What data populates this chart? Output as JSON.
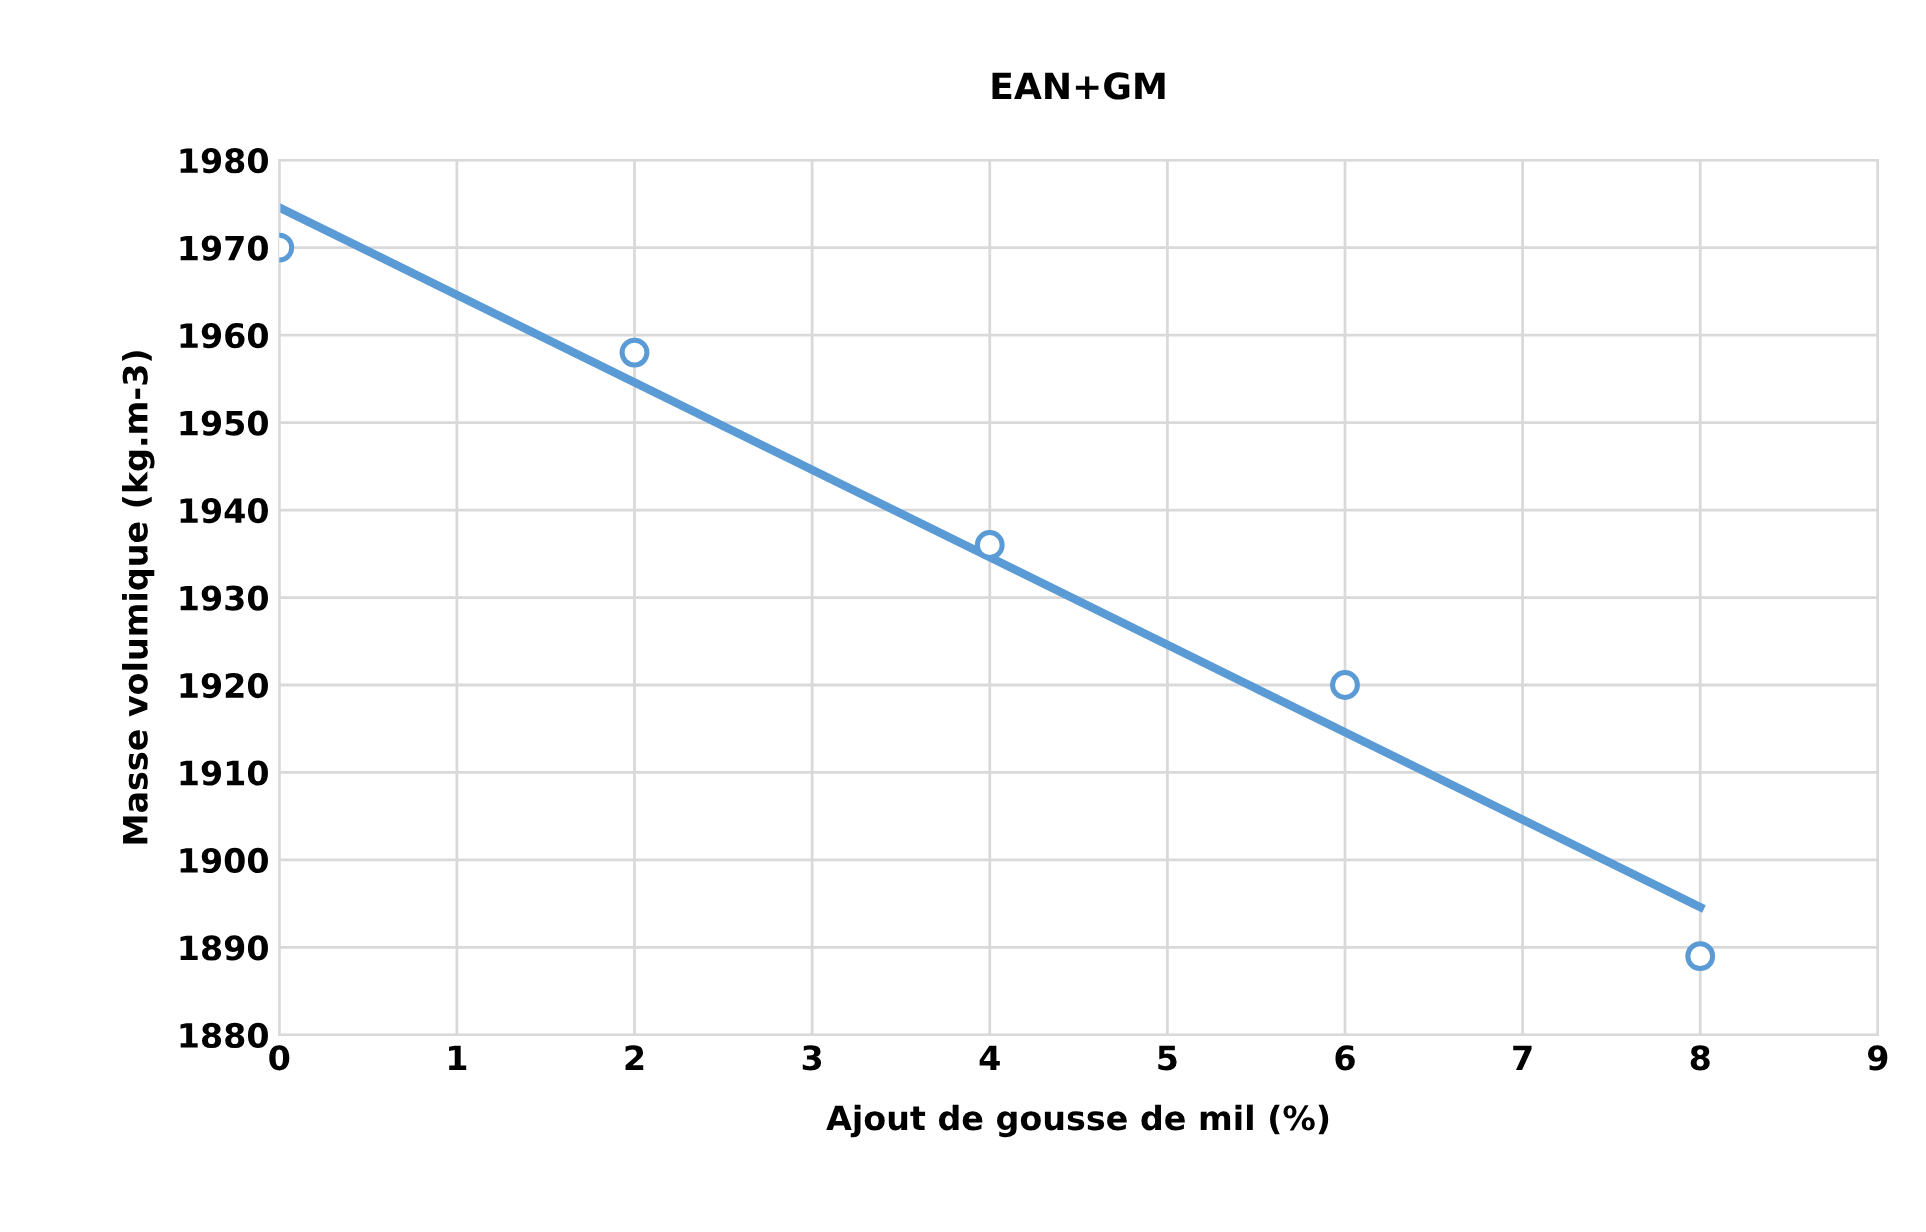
{
  "chart_data": {
    "type": "scatter",
    "title": "EAN+GM",
    "xlabel": "Ajout de gousse de mil (%)",
    "ylabel": "Masse volumique (kg.m-3)",
    "series": [
      {
        "color": "#5b9bd5",
        "x": [
          0,
          2,
          4,
          6,
          8
        ],
        "values": [
          1970,
          1958,
          1936,
          1920,
          1889
        ],
        "marker": "circle"
      },
      {
        "type": "line",
        "color": "#5b9bd5",
        "x": [
          0,
          8
        ],
        "values": [
          1974.6,
          1894.6
        ],
        "marker": "none",
        "line_style": "solid"
      }
    ],
    "xlim": [
      0,
      9
    ],
    "xticks": [
      0,
      1,
      2,
      3,
      4,
      5,
      6,
      7,
      8,
      9
    ],
    "ylim": [
      1880,
      1980
    ],
    "yticks": [
      1880,
      1890,
      1900,
      1910,
      1920,
      1930,
      1940,
      1950,
      1960,
      1970,
      1980
    ],
    "grid": true,
    "legend": false
  }
}
